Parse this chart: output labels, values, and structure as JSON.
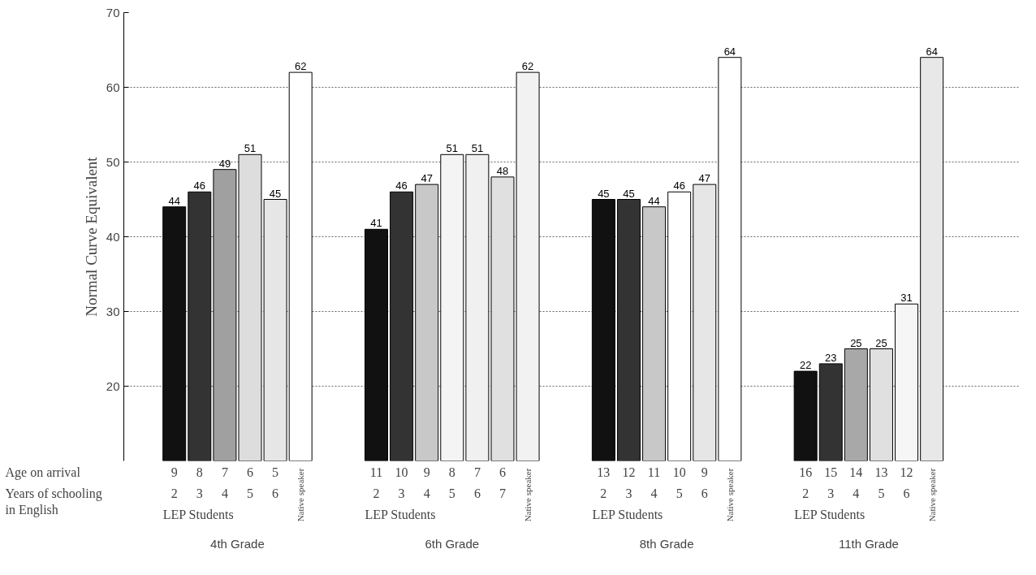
{
  "chart_data": {
    "type": "bar",
    "ylabel": "Normal Curve Equivalent",
    "categories": [
      "9",
      "8",
      "7",
      "6",
      "5",
      null,
      null,
      null,
      "11",
      "10",
      "9",
      "8",
      "7",
      "6",
      null,
      null,
      null,
      "13",
      "12",
      "11",
      "10",
      "9",
      null,
      null,
      null,
      "16",
      "15",
      "14",
      "13",
      "12",
      null
    ],
    "values": [
      44,
      46,
      49,
      51,
      45,
      62,
      null,
      null,
      41,
      46,
      47,
      51,
      51,
      48,
      62,
      null,
      null,
      45,
      45,
      44,
      46,
      47,
      64,
      null,
      null,
      22,
      23,
      25,
      25,
      31,
      64
    ],
    "colors": [
      "#111111",
      "#333333",
      "#a0a0a0",
      "#dddddd",
      "#e6e6e6",
      "#ffffff",
      null,
      null,
      "#111111",
      "#333333",
      "#c8c8c8",
      "#f4f4f4",
      "#f0f0f0",
      "#e0e0e0",
      "#f2f2f2",
      null,
      null,
      "#111111",
      "#333333",
      "#c8c8c8",
      "#ffffff",
      "#e6e6e6",
      "#ffffff",
      null,
      null,
      "#111111",
      "#333333",
      "#a8a8a8",
      "#e0e0e0",
      "#f6f6f6",
      "#e8e8e8"
    ],
    "ylim": [
      10,
      70
    ],
    "yticks": [
      20,
      30,
      40,
      50,
      60,
      70
    ],
    "grid": "y",
    "data_labels": true,
    "annotations": [
      "Age on arrival",
      "Years of schooling\nin English",
      "4th Grade",
      "LEP Students",
      "Native speaker",
      "2",
      "3",
      "4",
      "5",
      "6",
      "6th Grade",
      "LEP Students",
      "Native speaker",
      "2",
      "3",
      "4",
      "5",
      "6",
      "7",
      "8th Grade",
      "LEP Students",
      "Native speaker",
      "2",
      "3",
      "4",
      "5",
      "6",
      "11th Grade",
      "LEP Students",
      "Native speaker",
      "2",
      "3",
      "4",
      "5",
      "6"
    ]
  }
}
